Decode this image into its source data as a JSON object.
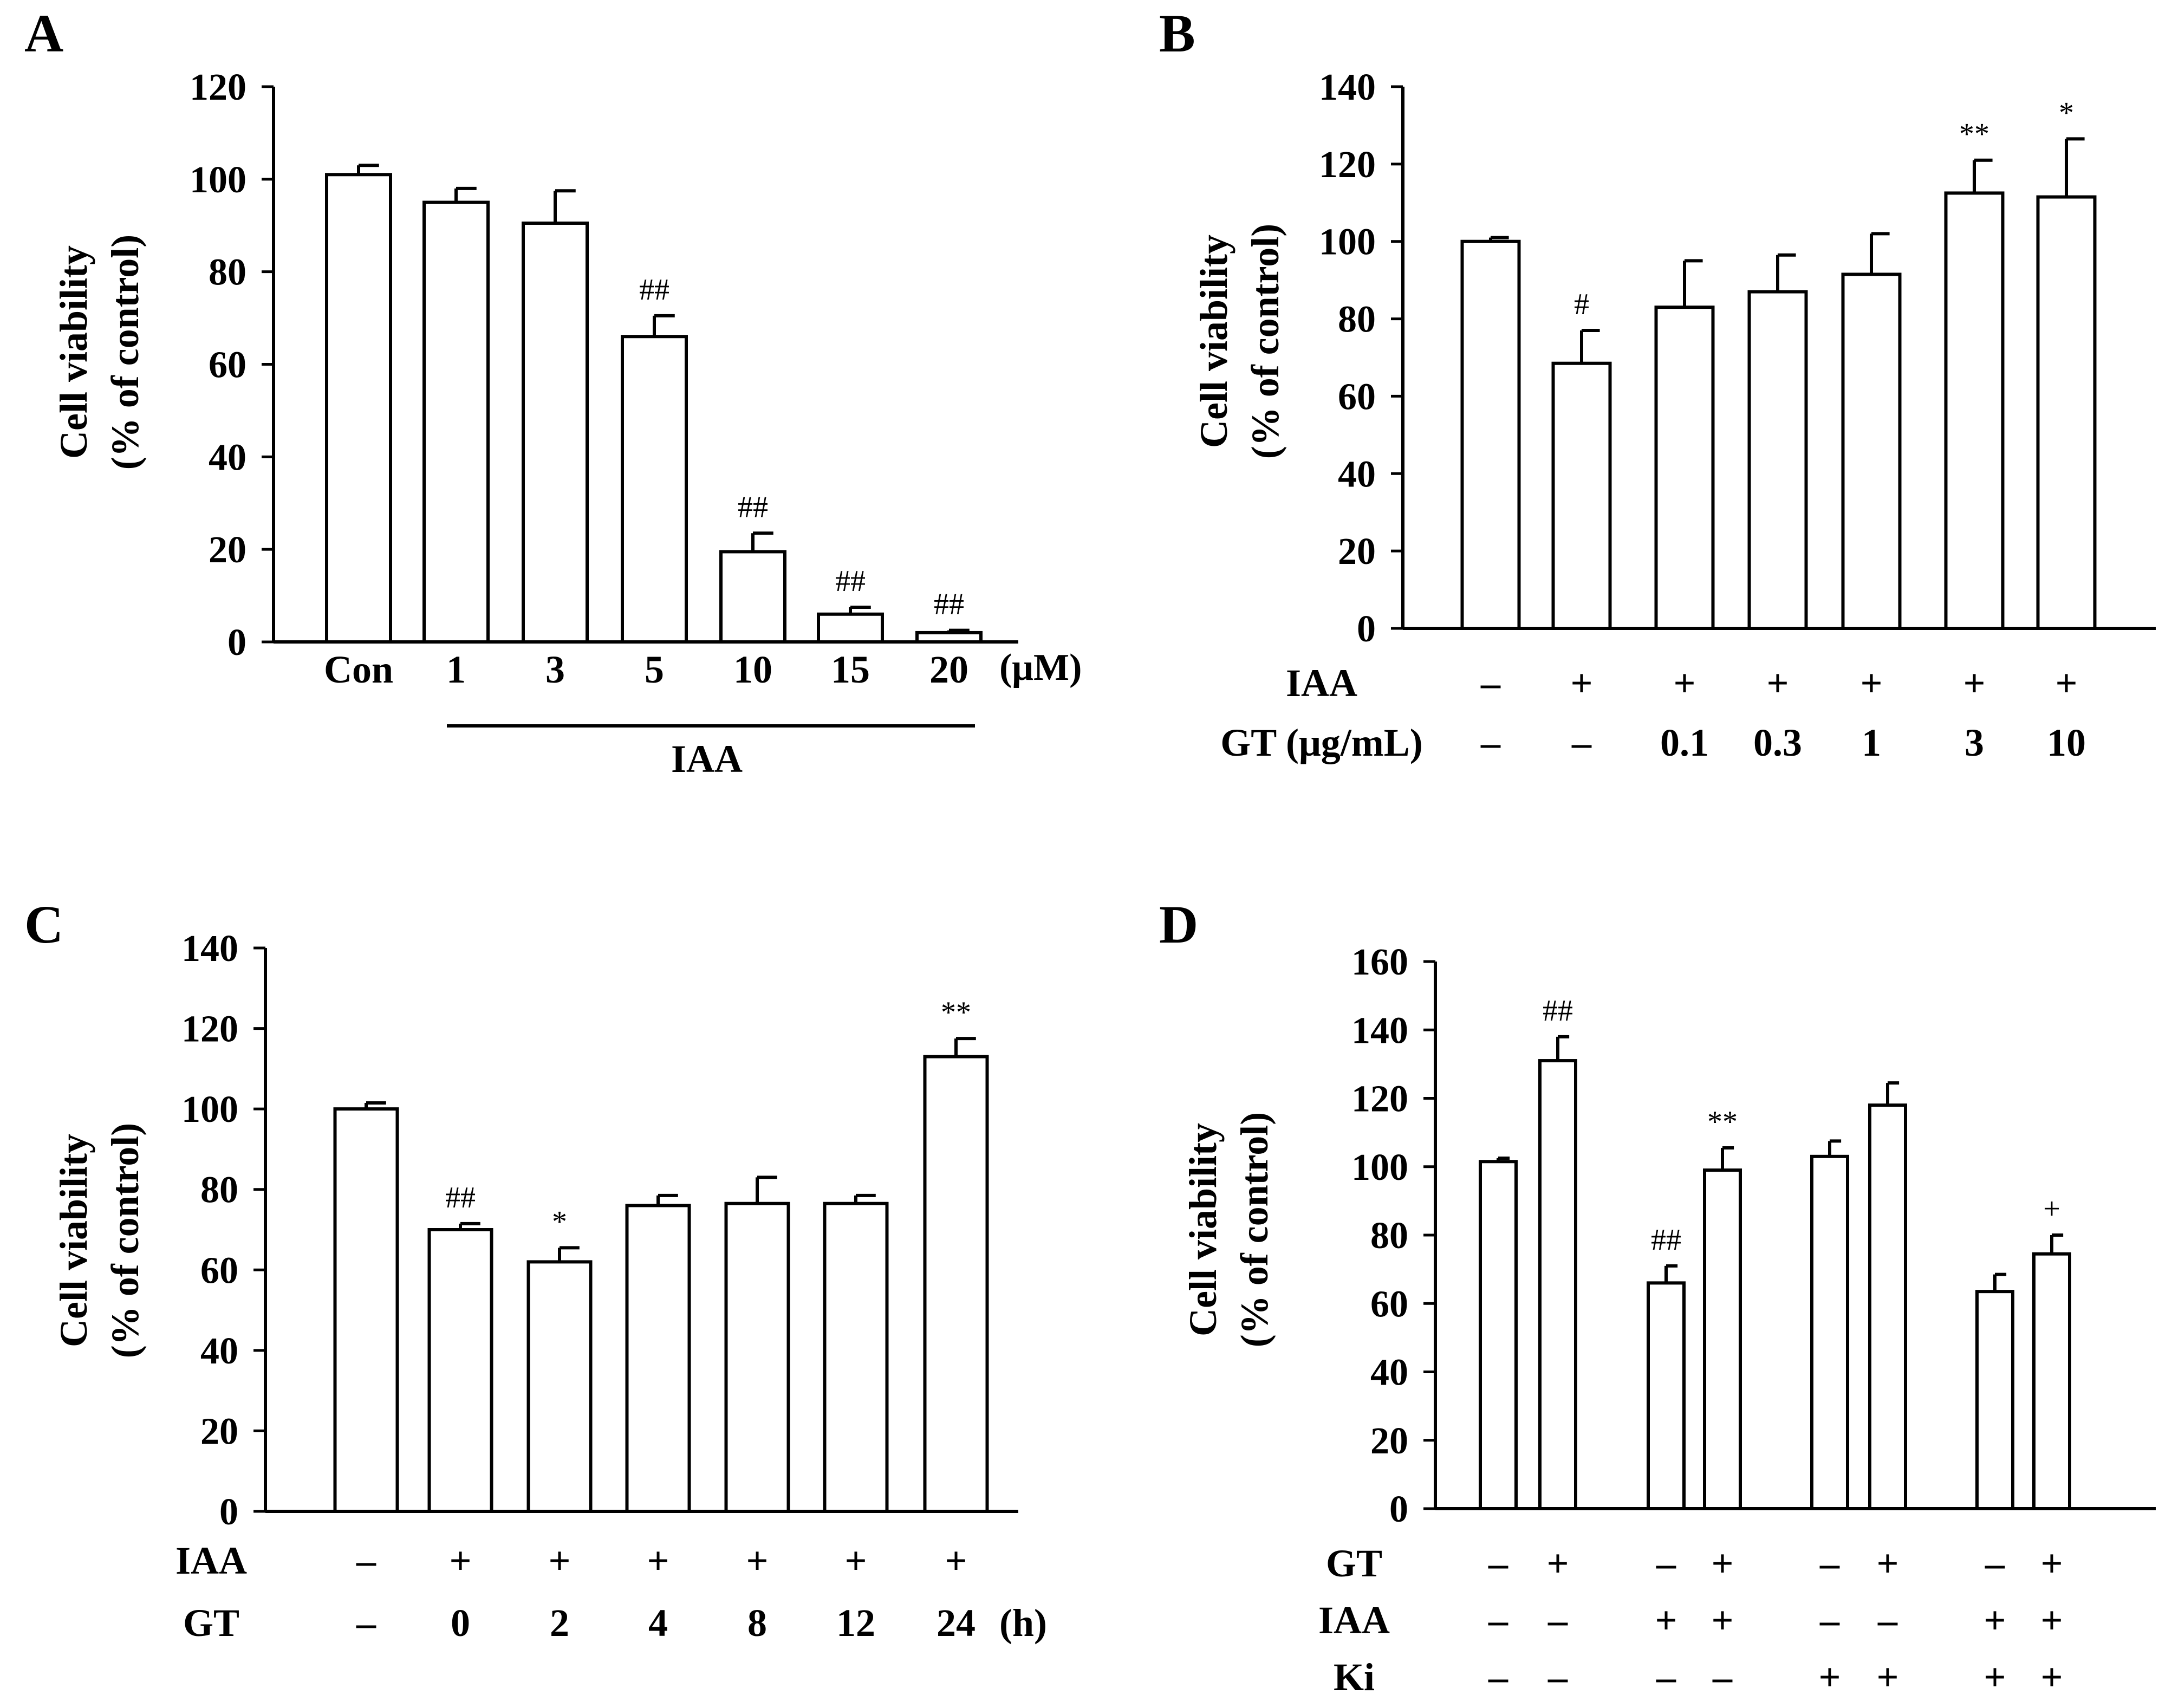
{
  "chart_data": [
    {
      "type": "bar",
      "panel": "A",
      "ylabel_line1": "Cell viability",
      "ylabel_line2": "(% of control)",
      "ylim": [
        0,
        120
      ],
      "yticks": [
        0,
        20,
        40,
        60,
        80,
        100,
        120
      ],
      "categories": [
        "Con",
        "1",
        "3",
        "5",
        "10",
        "15",
        "20"
      ],
      "values": [
        101,
        95,
        90.5,
        66,
        19.5,
        6,
        2
      ],
      "errors": [
        2,
        3,
        7,
        4.5,
        4,
        1.5,
        0.5
      ],
      "annotations": [
        "",
        "",
        "",
        "##",
        "##",
        "##",
        "##"
      ],
      "unit": "(μM)",
      "group_label": "IAA"
    },
    {
      "type": "bar",
      "panel": "B",
      "ylabel_line1": "Cell viability",
      "ylabel_line2": "(% of control)",
      "ylim": [
        0,
        140
      ],
      "yticks": [
        0,
        20,
        40,
        60,
        80,
        100,
        120,
        140
      ],
      "values": [
        100,
        68.5,
        83,
        87,
        91.5,
        112.5,
        111.5
      ],
      "errors": [
        1,
        8.5,
        12,
        9.5,
        10.5,
        8.5,
        15
      ],
      "annotations": [
        "",
        "#",
        "",
        "",
        "",
        "**",
        "*"
      ],
      "row_labels": [
        "IAA",
        "GT (μg/mL)"
      ],
      "rows": [
        [
          "–",
          "+",
          "+",
          "+",
          "+",
          "+",
          "+"
        ],
        [
          "–",
          "–",
          "0.1",
          "0.3",
          "1",
          "3",
          "10"
        ]
      ]
    },
    {
      "type": "bar",
      "panel": "C",
      "ylabel_line1": "Cell viability",
      "ylabel_line2": "(% of control)",
      "ylim": [
        0,
        140
      ],
      "yticks": [
        0,
        20,
        40,
        60,
        80,
        100,
        120,
        140
      ],
      "values": [
        100,
        70,
        62,
        76,
        76.5,
        76.5,
        113
      ],
      "errors": [
        1.5,
        1.5,
        3.5,
        2.5,
        6.5,
        2,
        4.5
      ],
      "annotations": [
        "",
        "##",
        "*",
        "",
        "",
        "",
        "**"
      ],
      "row_labels": [
        "IAA",
        "GT"
      ],
      "rows": [
        [
          "–",
          "+",
          "+",
          "+",
          "+",
          "+",
          "+"
        ],
        [
          "–",
          "0",
          "2",
          "4",
          "8",
          "12",
          "24"
        ]
      ],
      "unit": "(h)"
    },
    {
      "type": "bar",
      "panel": "D",
      "ylabel_line1": "Cell viability",
      "ylabel_line2": "(% of control)",
      "ylim": [
        0,
        160
      ],
      "yticks": [
        0,
        20,
        40,
        60,
        80,
        100,
        120,
        140,
        160
      ],
      "values": [
        101.5,
        131,
        66,
        99,
        103,
        118,
        63.5,
        74.5
      ],
      "errors": [
        1,
        7,
        5,
        6.5,
        4.5,
        6.5,
        5,
        5.5
      ],
      "annotations": [
        "",
        "##",
        "##",
        "**",
        "",
        "",
        "",
        "+"
      ],
      "row_labels": [
        "GT",
        "IAA",
        "Ki"
      ],
      "rows": [
        [
          "–",
          "+",
          "–",
          "+",
          "–",
          "+",
          "–",
          "+"
        ],
        [
          "–",
          "–",
          "+",
          "+",
          "–",
          "–",
          "+",
          "+"
        ],
        [
          "–",
          "–",
          "–",
          "–",
          "+",
          "+",
          "+",
          "+"
        ]
      ]
    }
  ]
}
